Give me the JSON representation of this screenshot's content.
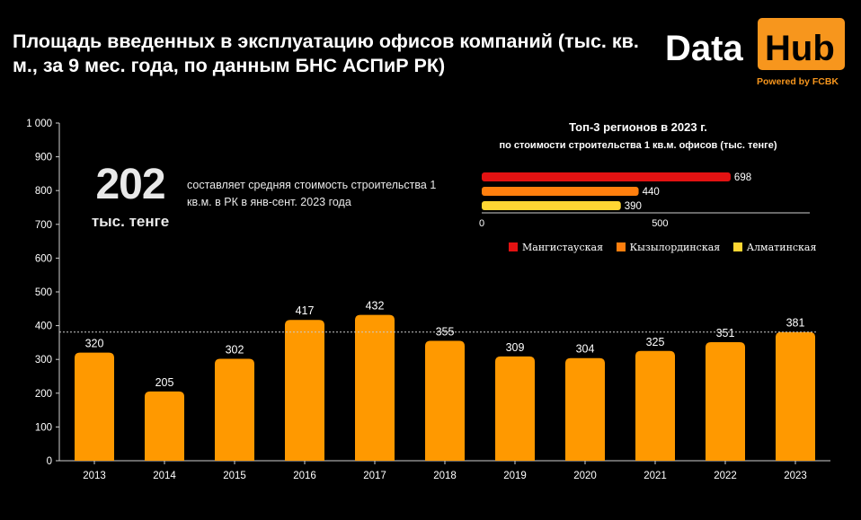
{
  "title": "Площадь введенных в эксплуатацию офисов компаний (тыс. кв. м., за 9 мес. года, по данным БНС АСПиР РК)",
  "logo": {
    "word1": "Data",
    "word2": "Hub",
    "tagline": "Powered by FCBK"
  },
  "kpi": {
    "value": "202",
    "unit": "тыс. тенге",
    "description": "составляет средняя стоимость строительства 1 кв.м. в РК в янв-сент. 2023  года"
  },
  "colors": {
    "bar": "#ff9900",
    "background": "#000000",
    "reference_line": "#cccccc",
    "accent": "#f7961d"
  },
  "chart_data": [
    {
      "type": "bar",
      "categories": [
        "2013",
        "2014",
        "2015",
        "2016",
        "2017",
        "2018",
        "2019",
        "2020",
        "2021",
        "2022",
        "2023"
      ],
      "values": [
        320,
        205,
        302,
        417,
        432,
        355,
        309,
        304,
        325,
        351,
        381
      ],
      "data_labels": [
        "320",
        "205",
        "302",
        "417",
        "432",
        "355",
        "309",
        "304",
        "325",
        "351",
        "381"
      ],
      "ylim": [
        0,
        1000
      ],
      "y_ticks": [
        0,
        100,
        200,
        300,
        400,
        500,
        600,
        700,
        800,
        900,
        1000
      ],
      "y_tick_labels": [
        "0",
        "100",
        "200",
        "300",
        "400",
        "500",
        "600",
        "700",
        "800",
        "900",
        "1 000"
      ],
      "reference_line": 381,
      "grid": false,
      "xlabel": "",
      "ylabel": ""
    },
    {
      "type": "bar",
      "orientation": "horizontal",
      "title": "Топ-3 регионов в 2023 г.",
      "subtitle": "по стоимости строительства 1 кв.м. офисов (тыс. тенге)",
      "categories": [
        "Мангистауская",
        "Кызылординская",
        "Алматинская"
      ],
      "values": [
        698,
        440,
        390
      ],
      "data_labels": [
        "698",
        "440",
        "390"
      ],
      "colors": [
        "#e31212",
        "#ff7f0e",
        "#ffd633"
      ],
      "xlim": [
        0,
        920
      ],
      "x_ticks": [
        0,
        500
      ],
      "x_tick_labels": [
        "0",
        "500"
      ],
      "legend": [
        "Мангистауская",
        "Кызылординская",
        "Алматинская"
      ],
      "legend_position": "bottom",
      "grid": false
    }
  ]
}
